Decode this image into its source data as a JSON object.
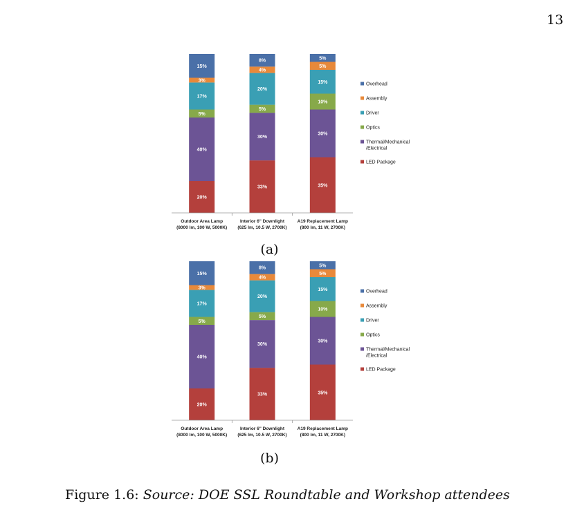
{
  "page_number": "13",
  "subcaptions": [
    "(a)",
    "(b)"
  ],
  "caption": {
    "prefix": "Figure 1.6: ",
    "source": "Source: DOE SSL Roundtable and Workshop attendees"
  },
  "colors": {
    "Overhead": "#4a70a8",
    "Assembly": "#e8893a",
    "Driver": "#3a9fb4",
    "Optics": "#87a94a",
    "Thermal/Mechanical/Electrical": "#6c5495",
    "LED Package": "#b4403c"
  },
  "chart_data": [
    {
      "type": "bar",
      "stacked": true,
      "categories": [
        [
          "Outdoor Area Lamp",
          "(8000 lm, 100 W, 5000K)"
        ],
        [
          "Interior 6\" Downlight",
          "(625 lm, 10.5 W, 2700K)"
        ],
        [
          "A19 Replacement Lamp",
          "(800 lm, 11 W, 2700K)"
        ]
      ],
      "series": [
        {
          "name": "LED Package",
          "values": [
            20,
            33,
            35
          ]
        },
        {
          "name": "Thermal/Mechanical/Electrical",
          "values": [
            40,
            30,
            30
          ]
        },
        {
          "name": "Optics",
          "values": [
            5,
            5,
            10
          ]
        },
        {
          "name": "Driver",
          "values": [
            17,
            20,
            15
          ]
        },
        {
          "name": "Assembly",
          "values": [
            3,
            4,
            5
          ]
        },
        {
          "name": "Overhead",
          "values": [
            15,
            8,
            5
          ]
        }
      ],
      "legend": [
        "Overhead",
        "Assembly",
        "Driver",
        "Optics",
        [
          "Thermal/Mechanical",
          "/Electrical"
        ],
        "LED Package"
      ],
      "legend_position": "right",
      "grid": false,
      "ylim": [
        0,
        100
      ]
    },
    {
      "type": "bar",
      "stacked": true,
      "categories": [
        [
          "Outdoor Area Lamp",
          "(8000 lm, 100 W, 5000K)"
        ],
        [
          "Interior 6\" Downlight",
          "(625 lm, 10.5 W, 2700K)"
        ],
        [
          "A19 Replacement Lamp",
          "(800 lm, 11 W, 2700K)"
        ]
      ],
      "series": [
        {
          "name": "LED Package",
          "values": [
            20,
            33,
            35
          ]
        },
        {
          "name": "Thermal/Mechanical/Electrical",
          "values": [
            40,
            30,
            30
          ]
        },
        {
          "name": "Optics",
          "values": [
            5,
            5,
            10
          ]
        },
        {
          "name": "Driver",
          "values": [
            17,
            20,
            15
          ]
        },
        {
          "name": "Assembly",
          "values": [
            3,
            4,
            5
          ]
        },
        {
          "name": "Overhead",
          "values": [
            15,
            8,
            5
          ]
        }
      ],
      "legend": [
        "Overhead",
        "Assembly",
        "Driver",
        "Optics",
        [
          "Thermal/Mechanical",
          "/Electrical"
        ],
        "LED Package"
      ],
      "legend_position": "right",
      "grid": false,
      "ylim": [
        0,
        100
      ]
    }
  ]
}
